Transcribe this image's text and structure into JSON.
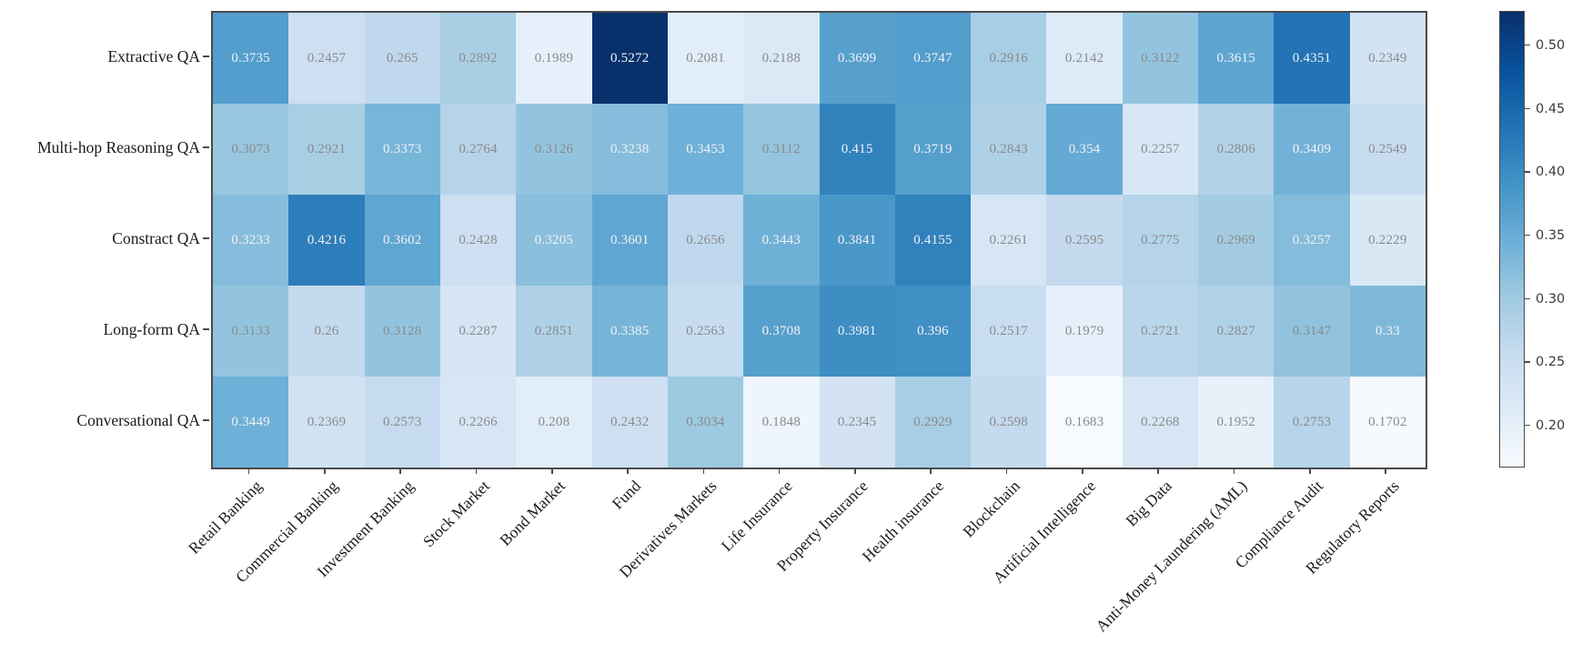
{
  "chart_data": {
    "type": "heatmap",
    "rows": [
      "Extractive QA",
      "Multi-hop Reasoning QA",
      "Constract QA",
      "Long-form QA",
      "Conversational QA"
    ],
    "columns": [
      "Retail Banking",
      "Commercial Banking",
      "Investment Banking",
      "Stock Market",
      "Bond Market",
      "Fund",
      "Derivatives Markets",
      "Life Insurance",
      "Property Insurance",
      "Health insurance",
      "Blockchain",
      "Artificial Intelligence",
      "Big Data",
      "Anti-Money Laundering (AML)",
      "Compliance Audit",
      "Regulatory Reports"
    ],
    "values": [
      [
        0.3735,
        0.2457,
        0.265,
        0.2892,
        0.1989,
        0.5272,
        0.2081,
        0.2188,
        0.3699,
        0.3747,
        0.2916,
        0.2142,
        0.3122,
        0.3615,
        0.4351,
        0.2349
      ],
      [
        0.3073,
        0.2921,
        0.3373,
        0.2764,
        0.3126,
        0.3238,
        0.3453,
        0.3112,
        0.415,
        0.3719,
        0.2843,
        0.354,
        0.2257,
        0.2806,
        0.3409,
        0.2549
      ],
      [
        0.3233,
        0.4216,
        0.3602,
        0.2428,
        0.3205,
        0.3601,
        0.2656,
        0.3443,
        0.3841,
        0.4155,
        0.2261,
        0.2595,
        0.2775,
        0.2969,
        0.3257,
        0.2229
      ],
      [
        0.3133,
        0.26,
        0.3128,
        0.2287,
        0.2851,
        0.3385,
        0.2563,
        0.3708,
        0.3981,
        0.396,
        0.2517,
        0.1979,
        0.2721,
        0.2827,
        0.3147,
        0.33
      ],
      [
        0.3449,
        0.2369,
        0.2573,
        0.2266,
        0.208,
        0.2432,
        0.3034,
        0.1848,
        0.2345,
        0.2929,
        0.2598,
        0.1683,
        0.2268,
        0.1952,
        0.2753,
        0.1702
      ]
    ],
    "vmin": 0.1683,
    "vmax": 0.5272,
    "colormap": "Blues",
    "colormap_anchors": [
      "#f7fbff",
      "#deebf7",
      "#c6dbef",
      "#9ecae1",
      "#6baed6",
      "#4292c6",
      "#2171b5",
      "#08519c",
      "#08306b"
    ],
    "colorbar_ticks": [
      "0.50",
      "0.45",
      "0.40",
      "0.35",
      "0.30",
      "0.25",
      "0.20"
    ],
    "grid": false,
    "legend_position": "colorbar-right",
    "title": "",
    "xlabel": "",
    "ylabel": "",
    "annotation_colors": {
      "light": "#f2f2f2",
      "dark": "#8a8a8a"
    },
    "axis_color": "#4a4a4a"
  }
}
